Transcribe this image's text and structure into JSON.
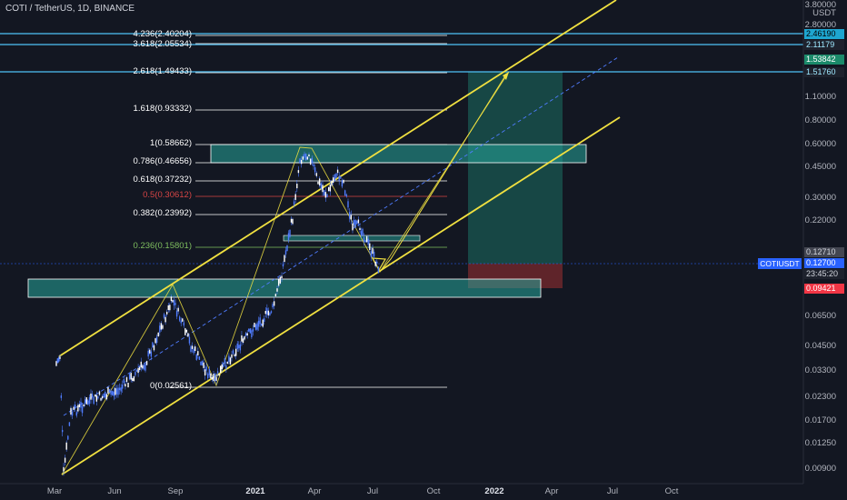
{
  "header": {
    "title": "COTI / TetherUS, 1D, BINANCE"
  },
  "price_axis": {
    "unit": "USDT",
    "top_value": "3.80000",
    "labels": [
      "2.80000",
      "1.10000",
      "0.80000",
      "0.60000",
      "0.45000",
      "0.30000",
      "0.22000",
      "0.06500",
      "0.04500",
      "0.03300",
      "0.02300",
      "0.01700",
      "0.01250",
      "0.00900"
    ],
    "tags": [
      {
        "text": "2.46190",
        "bg": "#1ea6d0",
        "fg": "#000000"
      },
      {
        "text": "2.11179",
        "bg": "#1e222d",
        "fg": "#9fe8ff"
      },
      {
        "text": "1.53842",
        "bg": "#1b8a6a",
        "fg": "#ffffff"
      },
      {
        "text": "1.51760",
        "bg": "#1e222d",
        "fg": "#9fe8ff"
      },
      {
        "text": "0.12710",
        "bg": "#434651",
        "fg": "#d1d4dc"
      },
      {
        "text": "0.12700",
        "bg": "#2962ff",
        "fg": "#ffffff"
      },
      {
        "text": "0.09421",
        "bg": "#f23645",
        "fg": "#ffffff"
      }
    ],
    "symbol": "COTIUSDT",
    "countdown": "23:45:20"
  },
  "time_axis": [
    "Mar",
    "Jun",
    "Sep",
    "2021",
    "Apr",
    "Jul",
    "Oct",
    "2022",
    "Apr",
    "Jul",
    "Oct"
  ],
  "fib_levels": [
    {
      "label": "4.236(2.40204)",
      "color": "#ffffff"
    },
    {
      "label": "3.618(2.05534)",
      "color": "#ffffff"
    },
    {
      "label": "2.618(1.49433)",
      "color": "#ffffff"
    },
    {
      "label": "1.618(0.93332)",
      "color": "#ffffff"
    },
    {
      "label": "1(0.58662)",
      "color": "#ffffff"
    },
    {
      "label": "0.786(0.46656)",
      "color": "#ffffff"
    },
    {
      "label": "0.618(0.37232)",
      "color": "#ffffff"
    },
    {
      "label": "0.5(0.30612)",
      "color": "#d64545"
    },
    {
      "label": "0.382(0.23992)",
      "color": "#ffffff"
    },
    {
      "label": "0.236(0.15801)",
      "color": "#7fbf5f"
    },
    {
      "label": "0(0.02561)",
      "color": "#ffffff"
    }
  ],
  "colors": {
    "background": "#131722",
    "candle": "#4f7cff",
    "channel": "#f0e040",
    "zone": "#26a69a",
    "horizontal_levels": "#4fc3f7",
    "target_box": "#1b6f63",
    "stop_box": "#7a2a2e"
  },
  "chart_data": {
    "type": "candlestick",
    "title": "COTI / TetherUS, 1D, BINANCE",
    "y_scale": "log",
    "ylim": [
      0.0085,
      3.8
    ],
    "x_tick_labels": [
      "Mar",
      "Jun",
      "Sep",
      "2021",
      "Apr",
      "Jul",
      "Oct",
      "2022",
      "Apr",
      "Jul",
      "Oct"
    ],
    "y_tick_labels": [
      "3.80000",
      "2.80000",
      "1.10000",
      "0.80000",
      "0.60000",
      "0.45000",
      "0.30000",
      "0.22000",
      "0.06500",
      "0.04500",
      "0.03300",
      "0.02300",
      "0.01700",
      "0.01250",
      "0.00900"
    ],
    "approx_close_path": [
      [
        "2020-03",
        0.035
      ],
      [
        "2020-03",
        0.009
      ],
      [
        "2020-04",
        0.016
      ],
      [
        "2020-05",
        0.02
      ],
      [
        "2020-06",
        0.021
      ],
      [
        "2020-07",
        0.025
      ],
      [
        "2020-08",
        0.05
      ],
      [
        "2020-09",
        0.08
      ],
      [
        "2020-10",
        0.04
      ],
      [
        "2020-11",
        0.028
      ],
      [
        "2020-12",
        0.035
      ],
      [
        "2021-01",
        0.06
      ],
      [
        "2021-02",
        0.2
      ],
      [
        "2021-03",
        0.45
      ],
      [
        "2021-04",
        0.5
      ],
      [
        "2021-05",
        0.35
      ],
      [
        "2021-06",
        0.22
      ],
      [
        "2021-07",
        0.13
      ]
    ],
    "last_price": 0.127,
    "fibonacci": [
      {
        "ratio": "4.236",
        "price": 2.40204
      },
      {
        "ratio": "3.618",
        "price": 2.05534
      },
      {
        "ratio": "2.618",
        "price": 1.49433
      },
      {
        "ratio": "1.618",
        "price": 0.93332
      },
      {
        "ratio": "1",
        "price": 0.58662
      },
      {
        "ratio": "0.786",
        "price": 0.46656
      },
      {
        "ratio": "0.618",
        "price": 0.37232
      },
      {
        "ratio": "0.5",
        "price": 0.30612
      },
      {
        "ratio": "0.382",
        "price": 0.23992
      },
      {
        "ratio": "0.236",
        "price": 0.15801
      },
      {
        "ratio": "0",
        "price": 0.02561
      }
    ],
    "horizontal_levels": [
      2.4619,
      2.11179,
      1.5176
    ],
    "position": {
      "entry": 0.127,
      "target": 1.53842,
      "stop": 0.09421
    },
    "grid": false
  }
}
